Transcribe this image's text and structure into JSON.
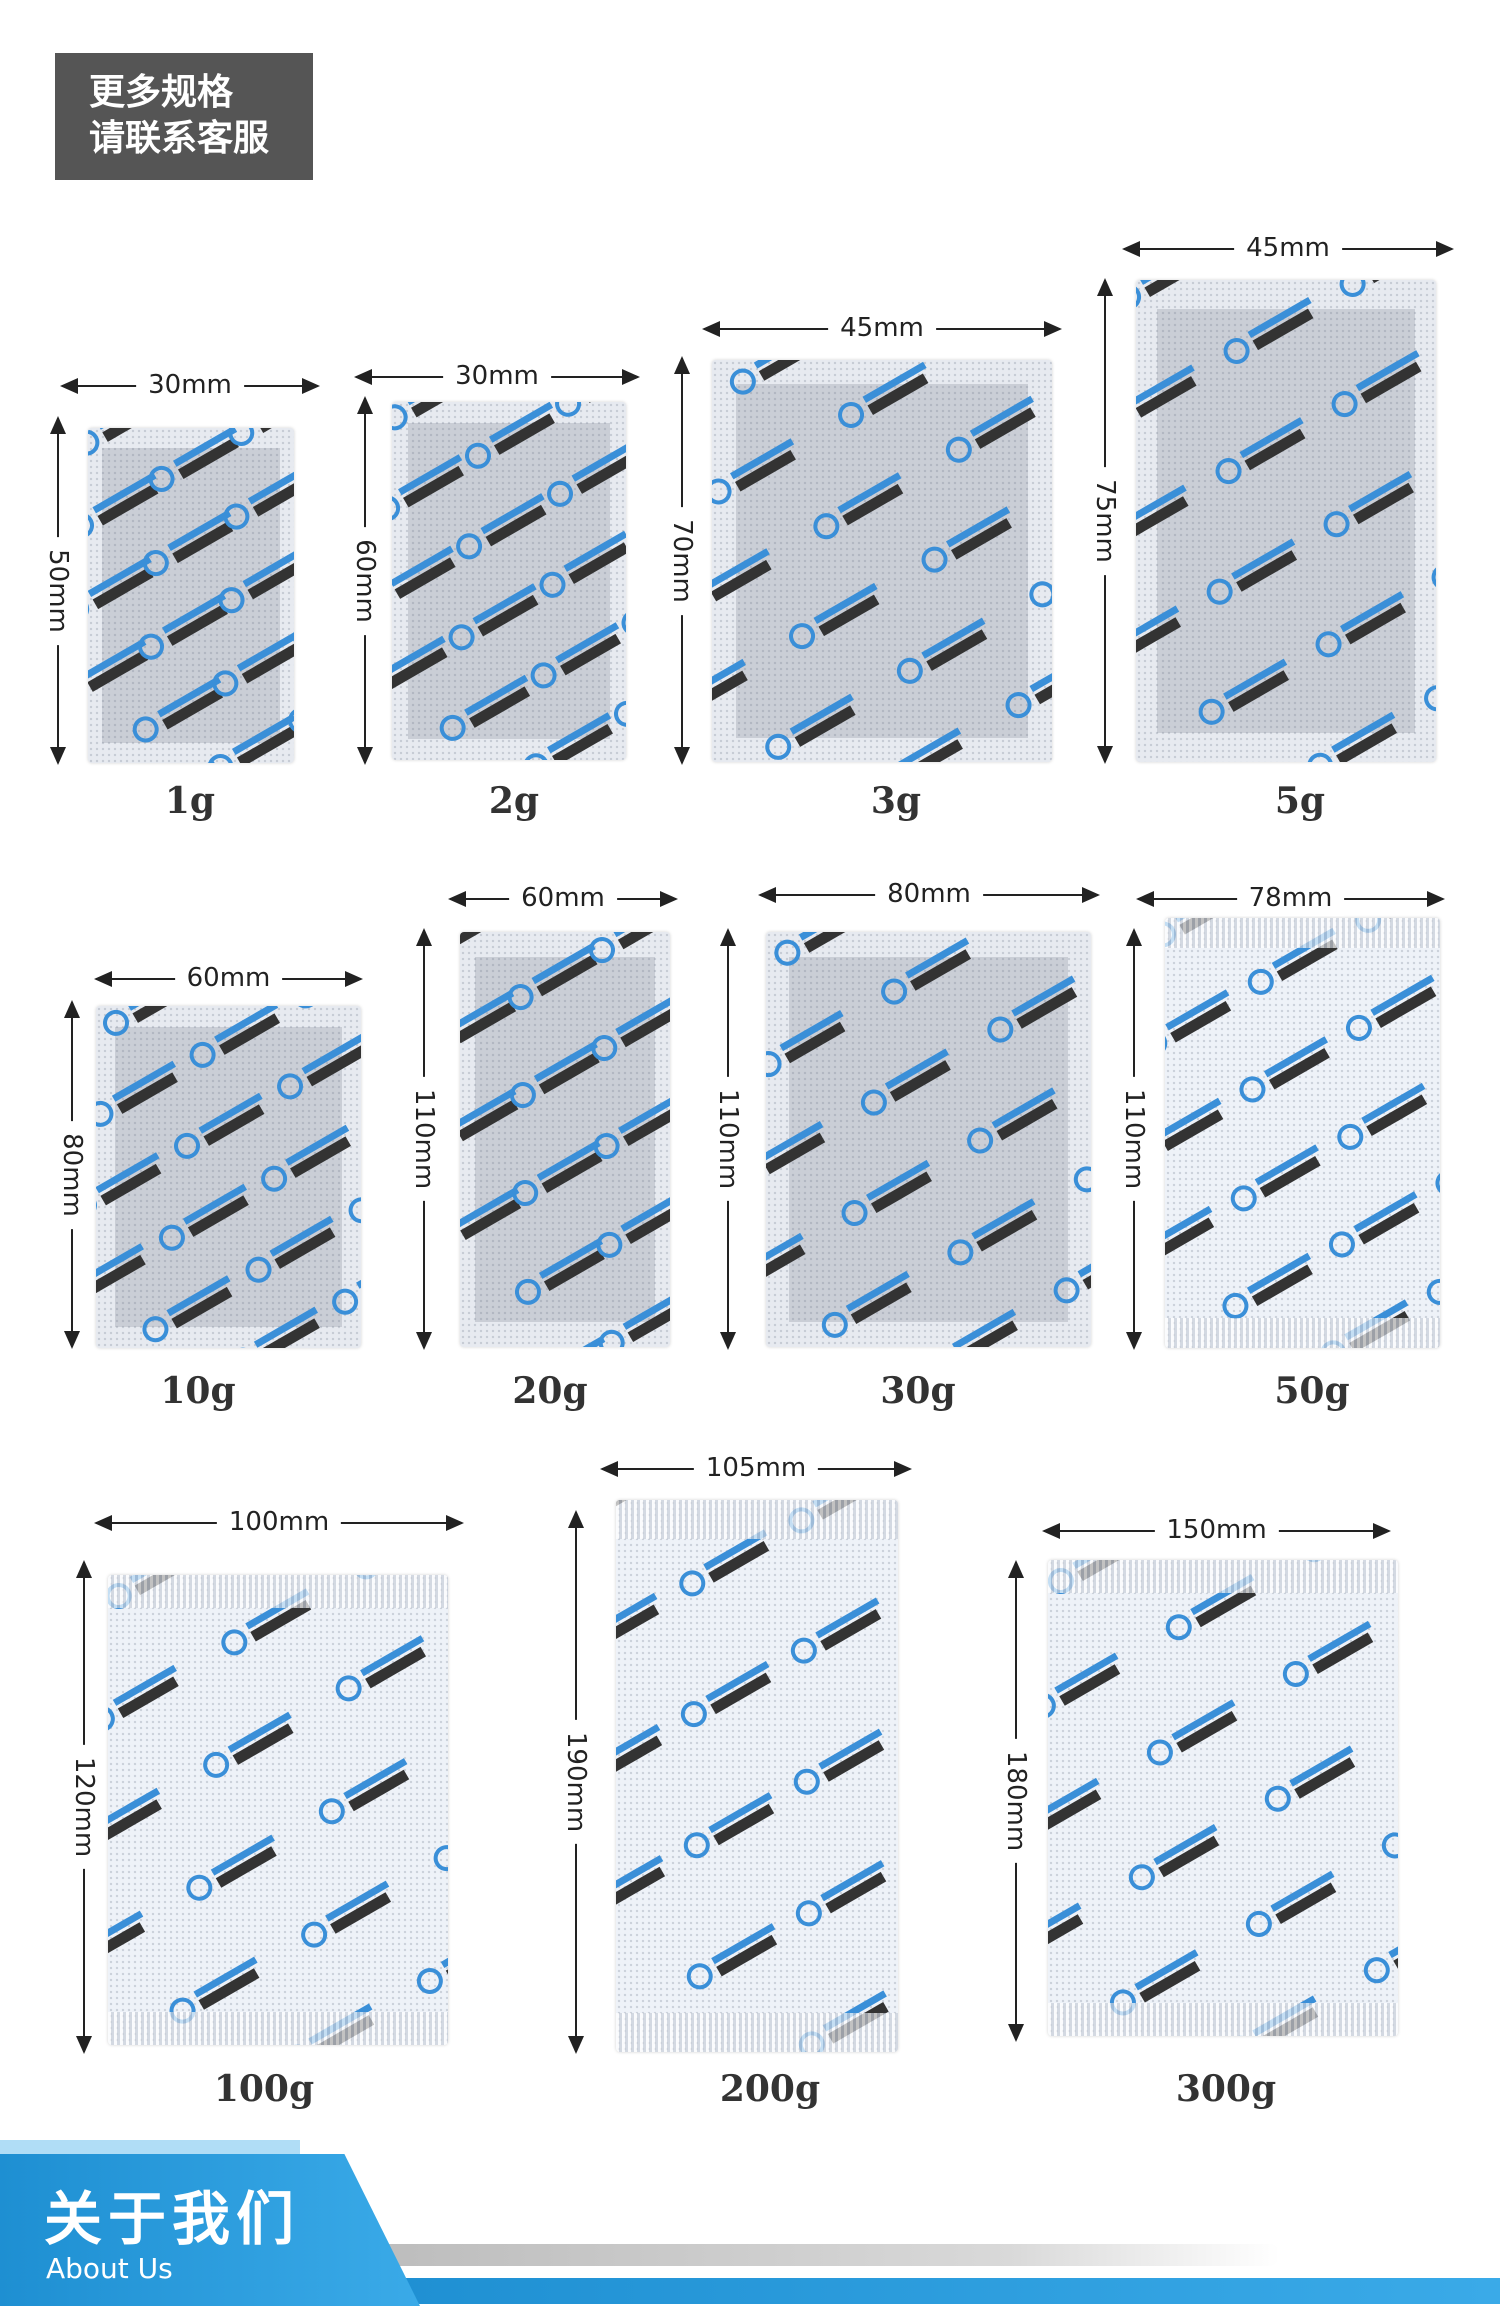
{
  "notice": {
    "line1": "更多规格",
    "line2": "请联系客服"
  },
  "products": [
    {
      "weight": "1g",
      "width": "30mm",
      "height": "50mm"
    },
    {
      "weight": "2g",
      "width": "30mm",
      "height": "60mm"
    },
    {
      "weight": "3g",
      "width": "45mm",
      "height": "70mm"
    },
    {
      "weight": "5g",
      "width": "45mm",
      "height": "75mm"
    },
    {
      "weight": "10g",
      "width": "60mm",
      "height": "80mm"
    },
    {
      "weight": "20g",
      "width": "60mm",
      "height": "110mm"
    },
    {
      "weight": "30g",
      "width": "80mm",
      "height": "110mm"
    },
    {
      "weight": "50g",
      "width": "78mm",
      "height": "110mm"
    },
    {
      "weight": "100g",
      "width": "100mm",
      "height": "120mm"
    },
    {
      "weight": "200g",
      "width": "105mm",
      "height": "190mm"
    },
    {
      "weight": "300g",
      "width": "150mm",
      "height": "180mm"
    }
  ],
  "footer": {
    "title_cn": "关于我们",
    "title_en": "About Us"
  },
  "colors": {
    "accent": "#1e8fd2",
    "notice_bg": "#555555"
  }
}
